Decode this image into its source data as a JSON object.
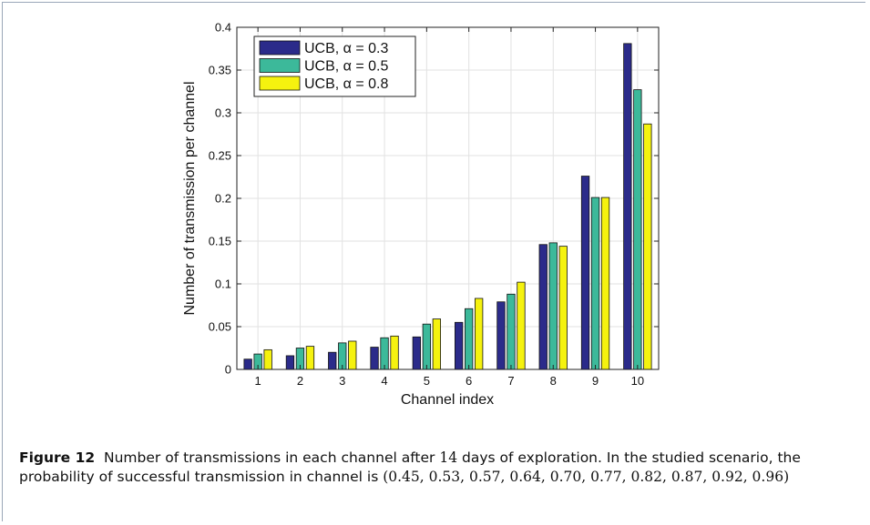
{
  "figure": {
    "label": "Figure 12",
    "caption_text_1": "Number of transmissions in each channel after",
    "caption_days": "14",
    "caption_text_2": "days of exploration. In the studied scenario, the probability of successful transmission in channel is",
    "caption_probabilities": "(0.45, 0.53, 0.57, 0.64, 0.70, 0.77, 0.82, 0.87, 0.92, 0.96)"
  },
  "chart_data": {
    "type": "bar",
    "categories": [
      "1",
      "2",
      "3",
      "4",
      "5",
      "6",
      "7",
      "8",
      "9",
      "10"
    ],
    "series": [
      {
        "name": "UCB, α = 0.3",
        "color": "#2b2b8a",
        "values": [
          0.012,
          0.016,
          0.02,
          0.026,
          0.038,
          0.055,
          0.079,
          0.146,
          0.226,
          0.381
        ]
      },
      {
        "name": "UCB, α = 0.5",
        "color": "#3cb99a",
        "values": [
          0.018,
          0.025,
          0.031,
          0.037,
          0.053,
          0.071,
          0.088,
          0.148,
          0.201,
          0.327
        ]
      },
      {
        "name": "UCB, α = 0.8",
        "color": "#f5f20f",
        "values": [
          0.023,
          0.027,
          0.033,
          0.039,
          0.059,
          0.083,
          0.102,
          0.144,
          0.201,
          0.287
        ]
      }
    ],
    "xlabel": "Channel index",
    "ylabel": "Number of transmission per channel",
    "ylim": [
      0,
      0.4
    ],
    "yticks": [
      "0",
      "0.05",
      "0.1",
      "0.15",
      "0.2",
      "0.25",
      "0.3",
      "0.35",
      "0.4"
    ],
    "grid": true,
    "legend": "top-left"
  }
}
